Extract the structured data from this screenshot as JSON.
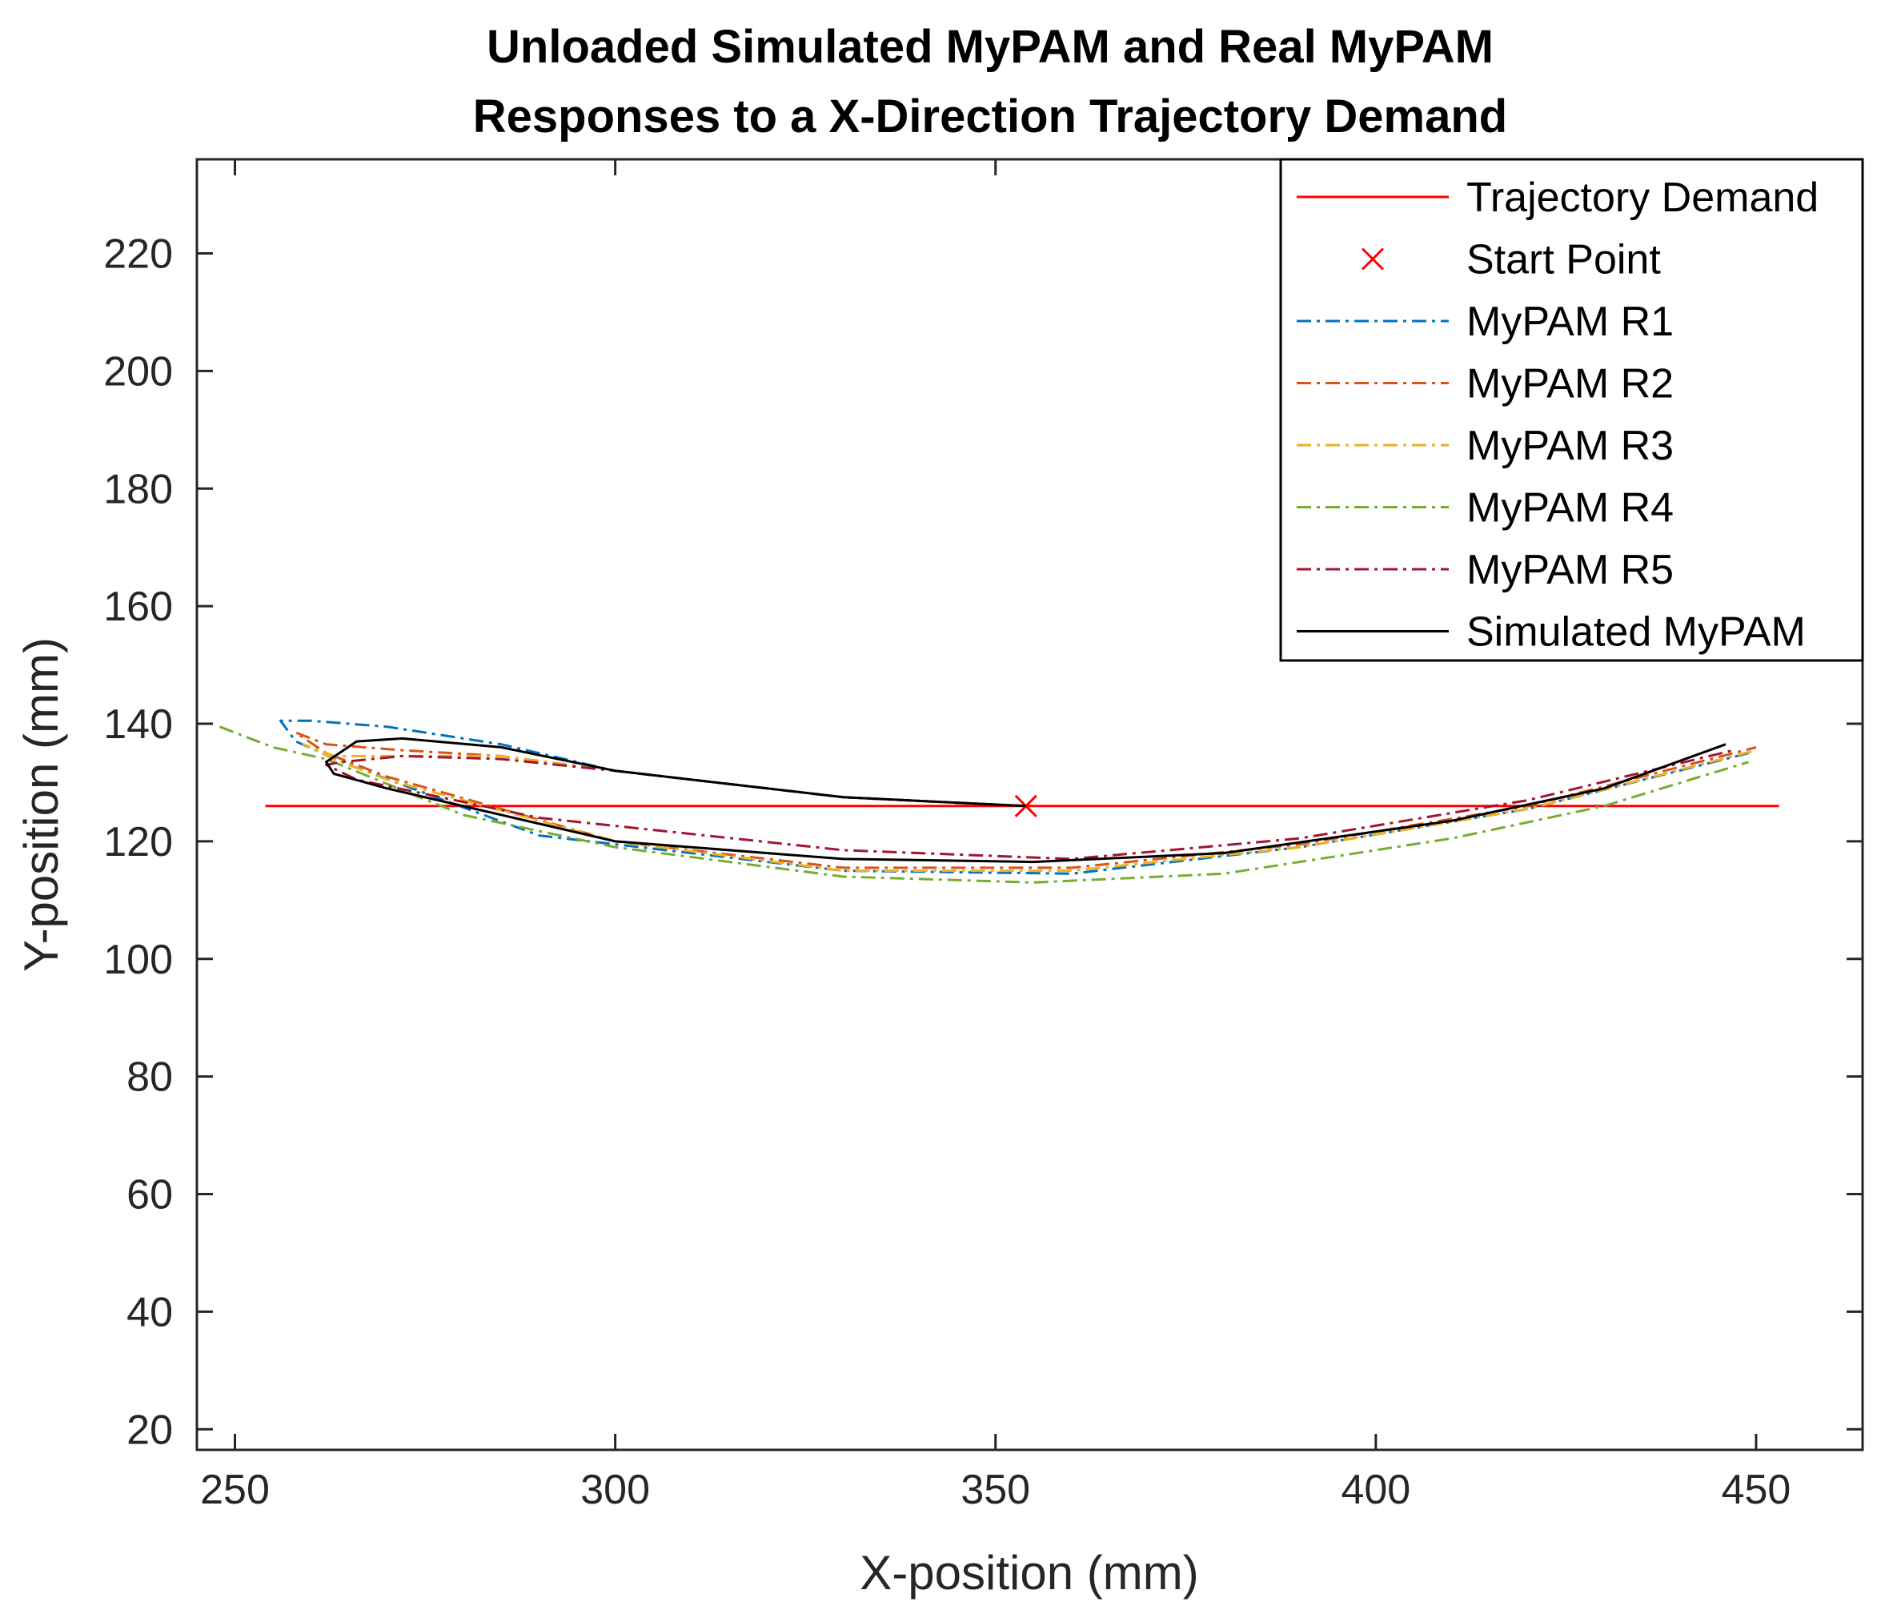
{
  "chart_data": {
    "type": "line",
    "title": [
      "Unloaded Simulated MyPAM and Real MyPAM",
      "Responses to a X-Direction Trajectory Demand"
    ],
    "xlabel": "X-position (mm)",
    "ylabel": "Y-position (mm)",
    "xlim": [
      245,
      464
    ],
    "ylim": [
      16.5,
      236
    ],
    "xticks": [
      250,
      300,
      350,
      400,
      450
    ],
    "yticks": [
      20,
      40,
      60,
      80,
      100,
      120,
      140,
      160,
      180,
      200,
      220
    ],
    "grid": false,
    "legend_location": "top-right",
    "series": [
      {
        "name": "Trajectory Demand",
        "color": "#ff0000",
        "style": "solid",
        "x": [
          254,
          453
        ],
        "y": [
          126,
          126
        ]
      },
      {
        "name": "Start Point",
        "color": "#ff0000",
        "style": "marker-x",
        "x": [
          354
        ],
        "y": [
          126
        ]
      },
      {
        "name": "MyPAM R1",
        "color": "#0072bd",
        "style": "dashdot",
        "x": [
          354,
          330,
          300,
          285,
          270,
          260,
          256,
          258,
          265,
          290,
          330,
          360,
          390,
          420,
          449
        ],
        "y": [
          126,
          127.5,
          132,
          136.5,
          139.5,
          140.5,
          140.5,
          137,
          133,
          121,
          115,
          114.5,
          119,
          125.5,
          135
        ]
      },
      {
        "name": "MyPAM R2",
        "color": "#d95319",
        "style": "dashdot",
        "x": [
          354,
          330,
          300,
          285,
          272,
          262,
          258,
          262,
          270,
          300,
          330,
          360,
          390,
          420,
          450
        ],
        "y": [
          126,
          127.5,
          132,
          134.5,
          135.5,
          136.5,
          138.5,
          135,
          131,
          120,
          115.5,
          115.5,
          119.5,
          126,
          136
        ]
      },
      {
        "name": "MyPAM R3",
        "color": "#edb120",
        "style": "dashdot",
        "x": [
          354,
          330,
          300,
          285,
          272,
          263,
          259,
          263,
          270,
          300,
          330,
          360,
          390,
          420,
          450
        ],
        "y": [
          126,
          127.5,
          132,
          134.5,
          134.5,
          134.5,
          136.5,
          134,
          130.5,
          120,
          115,
          115,
          119,
          125.5,
          135.5
        ]
      },
      {
        "name": "MyPAM R4",
        "color": "#77ac30",
        "style": "dashdot",
        "x": [
          248,
          255,
          262,
          280,
          300,
          330,
          355,
          380,
          410,
          430,
          449
        ],
        "y": [
          139.5,
          136,
          134,
          124.5,
          119,
          114,
          113,
          114.5,
          120.5,
          126,
          133.5
        ]
      },
      {
        "name": "MyPAM R5",
        "color": "#a2142f",
        "style": "dashdot",
        "x": [
          354,
          330,
          300,
          285,
          272,
          264,
          262,
          266,
          290,
          330,
          360,
          390,
          420,
          447
        ],
        "y": [
          126,
          127.5,
          132,
          134,
          134.5,
          133.5,
          133,
          130.5,
          124,
          118.5,
          117,
          120.5,
          127,
          135.5
        ]
      },
      {
        "name": "Simulated MyPAM",
        "color": "#000000",
        "style": "solid",
        "x": [
          354,
          330,
          300,
          285,
          272,
          266,
          262,
          263,
          270,
          300,
          330,
          355,
          380,
          410,
          430,
          446
        ],
        "y": [
          126,
          127.5,
          132,
          136,
          137.5,
          137,
          133.5,
          131.5,
          129,
          120,
          117,
          116.5,
          118,
          123.5,
          129,
          136.5
        ]
      }
    ]
  }
}
